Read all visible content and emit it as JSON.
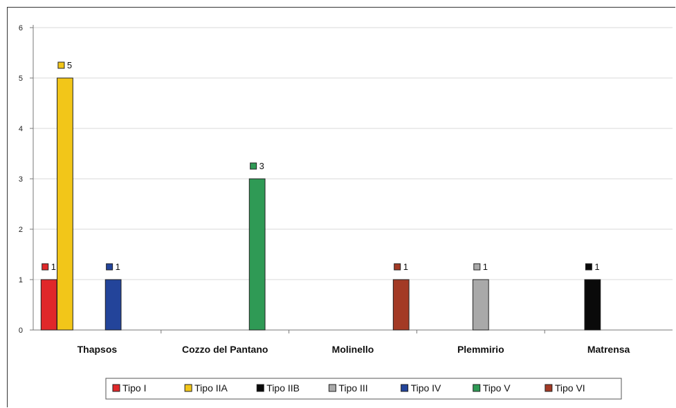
{
  "chart_data": {
    "type": "bar",
    "title": "",
    "xlabel": "",
    "ylabel": "",
    "ylim": [
      0,
      6
    ],
    "yticks": [
      "0",
      "1",
      "2",
      "3",
      "4",
      "5",
      "6"
    ],
    "grid": true,
    "legend_position": "bottom",
    "categories": [
      "Thapsos",
      "Cozzo del Pantano",
      "Molinello",
      "Plemmirio",
      "Matrensa"
    ],
    "series": [
      {
        "name": "Tipo I",
        "color": "#e0282a",
        "values": [
          1,
          0,
          0,
          0,
          0
        ]
      },
      {
        "name": "Tipo IIA",
        "color": "#f2c619",
        "values": [
          5,
          0,
          0,
          0,
          0
        ]
      },
      {
        "name": "Tipo IIB",
        "color": "#0a0a0a",
        "values": [
          0,
          0,
          0,
          0,
          1
        ]
      },
      {
        "name": "Tipo III",
        "color": "#a9a9a9",
        "values": [
          0,
          0,
          0,
          1,
          0
        ]
      },
      {
        "name": "Tipo IV",
        "color": "#23449a",
        "values": [
          1,
          0,
          0,
          0,
          0
        ]
      },
      {
        "name": "Tipo V",
        "color": "#2f9a55",
        "values": [
          0,
          3,
          0,
          0,
          0
        ]
      },
      {
        "name": "Tipo VI",
        "color": "#a33a25",
        "values": [
          0,
          0,
          1,
          0,
          0
        ]
      }
    ]
  }
}
